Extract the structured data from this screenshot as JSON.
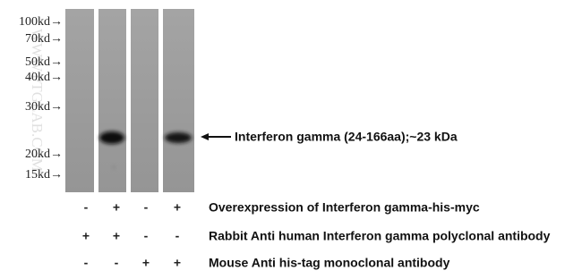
{
  "markers": [
    "100kd→",
    "70kd→",
    "50kd→",
    "40kd→",
    "30kd→",
    "20kd→",
    "15kd→"
  ],
  "band_label": "Interferon gamma (24-166aa);~23 kDa",
  "watermark": "WWW.PTGLAB.COM",
  "conditions": [
    {
      "signs": [
        "-",
        "+",
        "-",
        "+"
      ],
      "label": "Overexpression of Interferon gamma-his-myc"
    },
    {
      "signs": [
        "+",
        "+",
        "-",
        "-"
      ],
      "label": "Rabbit Anti human Interferon gamma polyclonal antibody"
    },
    {
      "signs": [
        "-",
        "-",
        "+",
        "+"
      ],
      "label": "Mouse Anti his-tag monoclonal antibody"
    }
  ]
}
